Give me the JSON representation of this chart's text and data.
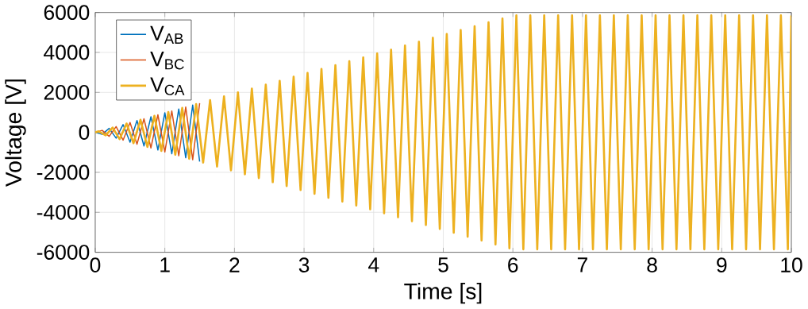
{
  "chart_data": {
    "type": "line",
    "xlabel": "Time [s]",
    "ylabel": "Voltage [V]",
    "xlim": [
      0,
      10
    ],
    "ylim": [
      -6000,
      6000
    ],
    "xticks": [
      0,
      1,
      2,
      3,
      4,
      5,
      6,
      7,
      8,
      9,
      10
    ],
    "yticks": [
      -6000,
      -4000,
      -2000,
      0,
      2000,
      4000,
      6000
    ],
    "grid": true,
    "legend": "top left",
    "series": [
      {
        "name": "V$_{AB}$",
        "color": "#0072bd",
        "x": [
          0,
          0.1,
          0.2,
          0.3,
          0.4,
          0.5,
          0.6,
          0.7,
          0.8,
          0.9,
          1.0,
          1.1,
          1.2,
          1.3,
          1.4,
          1.5
        ],
        "values": [
          0,
          -100,
          200,
          -290,
          390,
          -490,
          590,
          -680,
          780,
          -880,
          980,
          -1070,
          1170,
          -1270,
          1370,
          -1460
        ]
      },
      {
        "name": "V$_{BC}$",
        "color": "#d95319",
        "x": [
          0,
          0.1,
          0.2,
          0.3,
          0.4,
          0.5,
          0.6,
          0.7,
          0.8,
          0.9,
          1.0,
          1.1,
          1.2,
          1.3,
          1.4,
          1.5
        ],
        "values": [
          0,
          100,
          -200,
          290,
          -390,
          490,
          -590,
          680,
          -780,
          880,
          -980,
          1070,
          -1170,
          1270,
          -1370,
          1460
        ]
      },
      {
        "name": "V$_{CA}$",
        "color": "#edb120",
        "x": [
          0,
          0.05,
          0.15,
          0.25,
          0.35,
          0.45,
          0.55,
          0.65,
          0.75,
          0.85,
          0.95,
          1.05,
          1.15,
          1.25,
          1.35,
          1.45,
          1.55,
          1.65,
          1.75,
          1.85,
          1.95,
          2.05,
          2.15,
          2.25,
          2.35,
          2.45,
          2.55,
          2.65,
          2.75,
          2.85,
          2.95,
          3.05,
          3.15,
          3.25,
          3.35,
          3.45,
          3.55,
          3.65,
          3.75,
          3.85,
          3.95,
          4.05,
          4.15,
          4.25,
          4.35,
          4.45,
          4.55,
          4.65,
          4.75,
          4.85,
          4.95,
          5.05,
          5.15,
          5.25,
          5.35,
          5.45,
          5.55,
          5.65,
          5.75,
          5.85,
          5.95,
          6.05,
          6.15,
          6.25,
          6.35,
          6.45,
          6.55,
          6.65,
          6.75,
          6.85,
          6.95,
          7.05,
          7.15,
          7.25,
          7.35,
          7.45,
          7.55,
          7.65,
          7.75,
          7.85,
          7.95,
          8.05,
          8.15,
          8.25,
          8.35,
          8.45,
          8.55,
          8.65,
          8.75,
          8.85,
          8.95,
          9.05,
          9.15,
          9.25,
          9.35,
          9.45,
          9.55,
          9.65,
          9.75,
          9.85,
          9.95,
          10
        ],
        "values": [
          0,
          50,
          -150,
          240,
          -340,
          440,
          -540,
          630,
          -730,
          830,
          -930,
          1020,
          -1120,
          1220,
          -1320,
          1410,
          -1510,
          1610,
          -1710,
          1800,
          -1900,
          2000,
          -2100,
          2190,
          -2290,
          2390,
          -2490,
          2580,
          -2680,
          2780,
          -2880,
          2970,
          -3070,
          3170,
          -3270,
          3360,
          -3460,
          3560,
          -3660,
          3750,
          -3850,
          3950,
          -4050,
          4140,
          -4240,
          4340,
          -4440,
          4530,
          -4630,
          4730,
          -4830,
          4920,
          -5020,
          5120,
          -5220,
          5310,
          -5410,
          5510,
          -5610,
          5700,
          -5800,
          5850,
          -5850,
          5850,
          -5850,
          5850,
          -5850,
          5850,
          -5850,
          5850,
          -5850,
          5850,
          -5850,
          5850,
          -5850,
          5850,
          -5850,
          5850,
          -5850,
          5850,
          -5850,
          5850,
          -5850,
          5850,
          -5850,
          5850,
          -5850,
          5850,
          -5850,
          5850,
          -5850,
          5850,
          -5850,
          5850,
          -5850,
          5850,
          -5850,
          5850,
          -5850,
          5850,
          -5850,
          5850
        ]
      }
    ]
  }
}
